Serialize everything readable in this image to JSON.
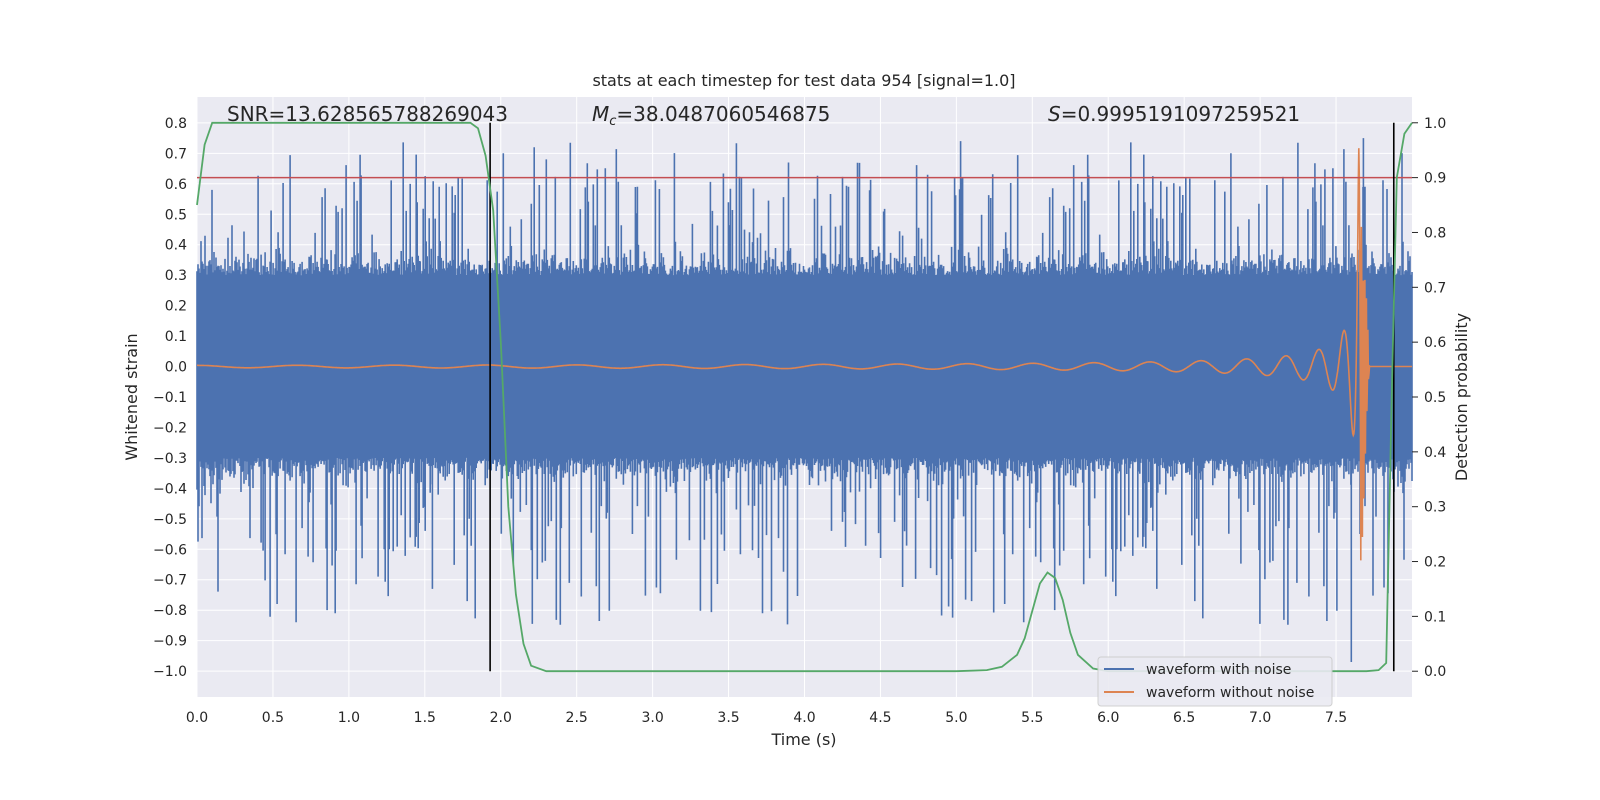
{
  "chart_data": {
    "type": "line",
    "title": "stats at each timestep for test data 954 [signal=1.0]",
    "xlabel": "Time (s)",
    "ylabel": "Whitened strain",
    "y2label": "Detection probability",
    "xlim": [
      0.0,
      8.0
    ],
    "ylim": [
      -1.085,
      0.885
    ],
    "y2lim": [
      -0.047,
      1.047
    ],
    "xticks": [
      "0.0",
      "0.5",
      "1.0",
      "1.5",
      "2.0",
      "2.5",
      "3.0",
      "3.5",
      "4.0",
      "4.5",
      "5.0",
      "5.5",
      "6.0",
      "6.5",
      "7.0",
      "7.5"
    ],
    "yticks": [
      "0.8",
      "0.7",
      "0.6",
      "0.5",
      "0.4",
      "0.3",
      "0.2",
      "0.1",
      "0.0",
      "−0.1",
      "−0.2",
      "−0.3",
      "−0.4",
      "−0.5",
      "−0.6",
      "−0.7",
      "−0.8",
      "−0.9",
      "−1.0"
    ],
    "y2ticks": [
      "1.0",
      "0.9",
      "0.8",
      "0.7",
      "0.6",
      "0.5",
      "0.4",
      "0.3",
      "0.2",
      "0.1",
      "0.0"
    ],
    "annotations": {
      "snr": "SNR=13.628565788269043",
      "mc_symbol": "M",
      "mc_subscript": "c",
      "mc_value": "=38.0487060546875",
      "s_symbol": "S",
      "s_value": "=0.9995191097259521"
    },
    "threshold": 0.9,
    "vertical_lines": [
      1.93,
      7.88
    ],
    "legend": {
      "location": "lower-right",
      "entries": [
        "waveform with noise",
        "waveform without noise"
      ]
    },
    "series": [
      {
        "name": "waveform with noise",
        "color": "#4c72b0",
        "description": "whitened noisy strain, bulk amplitude ±0.3 with spikes up to about 0.75 and down to about -1.0"
      },
      {
        "name": "waveform without noise",
        "color": "#dd8452",
        "description": "chirp signal growing from ~0 at t=4 to peak amplitude about ±0.72 at t≈7.65 s"
      },
      {
        "name": "detection probability",
        "color": "#55a868",
        "axis": "right",
        "x": [
          0.0,
          0.05,
          0.1,
          0.2,
          1.7,
          1.8,
          1.85,
          1.9,
          1.95,
          2.0,
          2.05,
          2.1,
          2.15,
          2.2,
          2.3,
          2.5,
          4.5,
          5.0,
          5.2,
          5.3,
          5.4,
          5.45,
          5.5,
          5.55,
          5.6,
          5.65,
          5.7,
          5.75,
          5.8,
          5.9,
          6.0,
          6.5,
          7.0,
          7.5,
          7.7,
          7.78,
          7.83,
          7.87,
          7.9,
          7.95,
          8.0
        ],
        "y": [
          0.85,
          0.96,
          1.0,
          1.0,
          1.0,
          1.0,
          0.99,
          0.94,
          0.84,
          0.6,
          0.3,
          0.14,
          0.05,
          0.01,
          0.0,
          0.0,
          0.0,
          0.0,
          0.002,
          0.008,
          0.03,
          0.06,
          0.11,
          0.16,
          0.18,
          0.17,
          0.13,
          0.07,
          0.03,
          0.005,
          0.0,
          0.0,
          0.0,
          0.0,
          0.0,
          0.002,
          0.015,
          0.55,
          0.9,
          0.98,
          1.0
        ]
      }
    ]
  },
  "colors": {
    "plot_background": "#eaeaf2",
    "grid": "#ffffff",
    "noisy": "#4c72b0",
    "clean": "#dd8452",
    "probability": "#55a868",
    "threshold": "#c44e52",
    "vertical": "#000000"
  }
}
